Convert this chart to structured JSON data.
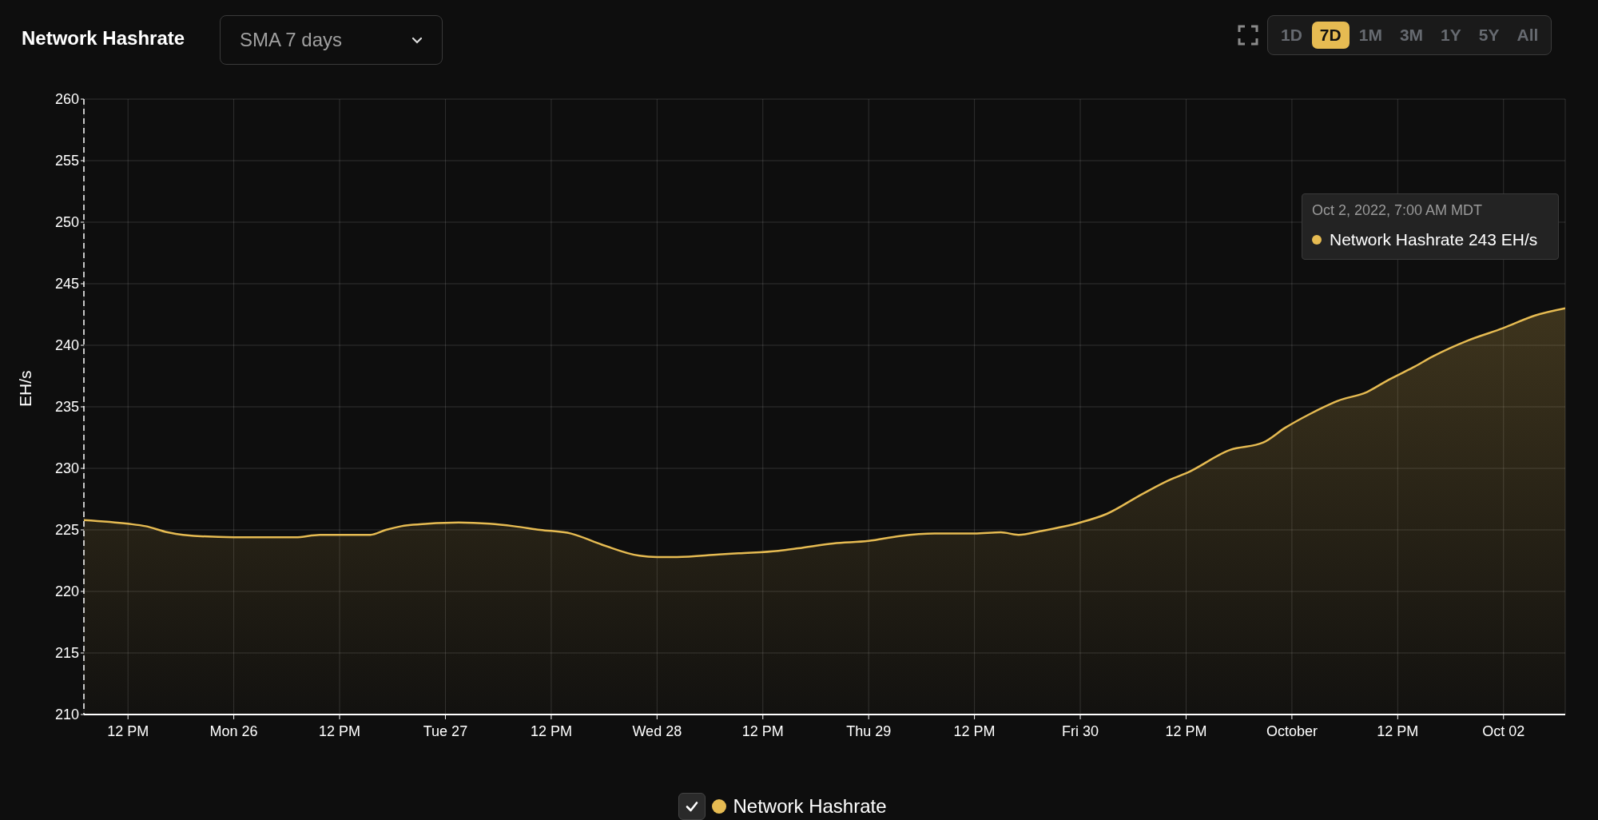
{
  "chart_data": {
    "type": "area",
    "title": "Network Hashrate",
    "subtitle": "SMA 7 days",
    "ylabel": "EH/s",
    "x": [
      "2022-09-25T07:00",
      "2022-09-25T12:00",
      "2022-09-25T14:00",
      "2022-09-25T16:30",
      "2022-09-25T18:15",
      "2022-09-26T00:00",
      "2022-09-26T07:00",
      "2022-09-26T09:45",
      "2022-09-26T13:45",
      "2022-09-26T15:30",
      "2022-09-26T17:15",
      "2022-09-26T19:00",
      "2022-09-26T22:00",
      "2022-09-27T01:30",
      "2022-09-27T05:00",
      "2022-09-27T07:45",
      "2022-09-27T10:45",
      "2022-09-27T14:15",
      "2022-09-27T17:45",
      "2022-09-27T22:00",
      "2022-09-28T00:00",
      "2022-09-28T02:15",
      "2022-09-28T07:00",
      "2022-09-28T09:15",
      "2022-09-28T13:45",
      "2022-09-28T16:00",
      "2022-09-28T20:00",
      "2022-09-29T00:00",
      "2022-09-29T03:30",
      "2022-09-29T07:30",
      "2022-09-29T12:00",
      "2022-09-29T15:00",
      "2022-09-29T17:00",
      "2022-09-29T19:30",
      "2022-09-30T00:00",
      "2022-09-30T03:00",
      "2022-09-30T07:00",
      "2022-09-30T10:15",
      "2022-09-30T12:00",
      "2022-09-30T17:00",
      "2022-09-30T20:45",
      "2022-09-30T23:15",
      "2022-10-01T02:00",
      "2022-10-01T05:15",
      "2022-10-01T08:30",
      "2022-10-01T10:45",
      "2022-10-01T13:45",
      "2022-10-01T16:00",
      "2022-10-01T20:00",
      "2022-10-02T00:00",
      "2022-10-02T03:30",
      "2022-10-02T07:00"
    ],
    "series": [
      {
        "name": "Network Hashrate",
        "color": "#e6bb52",
        "values": [
          225.8,
          225.5,
          225.3,
          224.8,
          224.6,
          224.4,
          224.4,
          224.6,
          224.6,
          224.6,
          225,
          225.3,
          225.5,
          225.6,
          225.5,
          225.3,
          225,
          224.7,
          223.8,
          222.9,
          222.8,
          222.8,
          223,
          223.1,
          223.3,
          223.5,
          223.9,
          224.1,
          224.5,
          224.7,
          224.7,
          224.8,
          224.6,
          224.9,
          225.6,
          226.3,
          227.9,
          229.1,
          229.6,
          231.5,
          232.1,
          233.3,
          234.4,
          235.5,
          236.2,
          237.1,
          238.2,
          239.1,
          240.4,
          241.4,
          242.4,
          243
        ]
      }
    ],
    "xlim": [
      "2022-09-25T07:00",
      "2022-10-02T07:00"
    ],
    "xticks": [
      {
        "value": "2022-09-25T12:00",
        "label": "12 PM"
      },
      {
        "value": "2022-09-26T00:00",
        "label": "Mon 26"
      },
      {
        "value": "2022-09-26T12:00",
        "label": "12 PM"
      },
      {
        "value": "2022-09-27T00:00",
        "label": "Tue 27"
      },
      {
        "value": "2022-09-27T12:00",
        "label": "12 PM"
      },
      {
        "value": "2022-09-28T00:00",
        "label": "Wed 28"
      },
      {
        "value": "2022-09-28T12:00",
        "label": "12 PM"
      },
      {
        "value": "2022-09-29T00:00",
        "label": "Thu 29"
      },
      {
        "value": "2022-09-29T12:00",
        "label": "12 PM"
      },
      {
        "value": "2022-09-30T00:00",
        "label": "Fri 30"
      },
      {
        "value": "2022-09-30T12:00",
        "label": "12 PM"
      },
      {
        "value": "2022-10-01T00:00",
        "label": "October"
      },
      {
        "value": "2022-10-01T12:00",
        "label": "12 PM"
      },
      {
        "value": "2022-10-02T00:00",
        "label": "Oct 02"
      }
    ],
    "ylim": [
      210,
      260
    ],
    "yticks": [
      210,
      215,
      220,
      225,
      230,
      235,
      240,
      245,
      250,
      255,
      260
    ],
    "grid": true,
    "legend": "bottom",
    "marker": "none",
    "line_style": "solid",
    "annotations": [
      "1D",
      "7D",
      "1M",
      "3M",
      "1Y",
      "5Y",
      "All",
      "Oct 2, 2022, 7:00 AM MDT",
      "Network Hashrate 243 EH/s"
    ]
  }
}
